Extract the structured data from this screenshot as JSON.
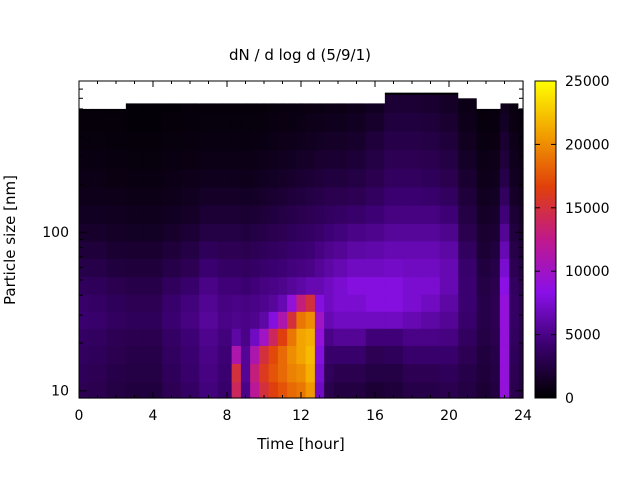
{
  "chart_data": {
    "type": "heatmap",
    "title": "dN / d log d (5/9/1)",
    "xlabel": "Time [hour]",
    "ylabel": "Particle size [nm]",
    "xlim": [
      0,
      24
    ],
    "ylim": [
      9,
      900
    ],
    "y_scale": "log",
    "x_ticks": [
      0,
      4,
      8,
      12,
      16,
      20,
      24
    ],
    "x_tick_labels": [
      "0",
      "4",
      "8",
      "12",
      "16",
      "20",
      "24"
    ],
    "y_ticks": [
      10,
      100
    ],
    "y_tick_labels": [
      "10",
      "100"
    ],
    "colorbar": {
      "min": 0,
      "max": 25000,
      "ticks": [
        0,
        5000,
        10000,
        15000,
        20000,
        25000
      ],
      "tick_labels": [
        "0",
        "5000",
        "10000",
        "15000",
        "20000",
        "25000"
      ],
      "colormap": [
        "#000000",
        "#3a006e",
        "#8a10e8",
        "#c0198c",
        "#e0400a",
        "#f2a000",
        "#ffff00"
      ]
    },
    "time_hours": [
      0,
      1,
      2,
      3,
      4,
      5,
      6,
      7,
      8,
      8.5,
      9,
      9.5,
      10,
      10.5,
      11,
      11.5,
      12,
      12.5,
      13,
      13.5,
      14,
      15,
      16,
      17,
      18,
      19,
      20,
      21,
      22,
      22.5,
      23,
      23.5,
      24
    ],
    "size_bins_nm": [
      10,
      13,
      17,
      22,
      28,
      36,
      46,
      60,
      78,
      100,
      130,
      170,
      220,
      290,
      380,
      500,
      650,
      850
    ],
    "concentration": [
      [
        3200,
        3000,
        2600,
        2400,
        2400,
        3200,
        3800,
        4600,
        4000,
        14000,
        5000,
        12000,
        15000,
        16500,
        17500,
        18500,
        19000,
        20500,
        7000,
        3000,
        2500,
        2500,
        2000,
        2200,
        2800,
        2800,
        3000,
        2600,
        2000,
        2500,
        9000,
        3000,
        2500
      ],
      [
        3400,
        3200,
        2800,
        2600,
        2600,
        3400,
        4000,
        4800,
        4200,
        15000,
        5500,
        13000,
        16000,
        17500,
        18500,
        19500,
        20000,
        21500,
        7500,
        3500,
        3000,
        3000,
        2600,
        2600,
        3200,
        3200,
        3400,
        2800,
        2200,
        2600,
        9000,
        3200,
        2600
      ],
      [
        3600,
        3400,
        3000,
        2800,
        2800,
        3600,
        4200,
        5000,
        4400,
        11000,
        5500,
        11000,
        15000,
        17000,
        18500,
        20000,
        21000,
        22000,
        8000,
        4000,
        4000,
        4000,
        3200,
        3400,
        4000,
        4000,
        4000,
        3200,
        2400,
        2800,
        9000,
        3400,
        2800
      ],
      [
        3800,
        3600,
        3200,
        3000,
        3000,
        3800,
        4400,
        5200,
        4600,
        6000,
        5000,
        7000,
        10000,
        14000,
        16500,
        19000,
        21000,
        21500,
        9000,
        5000,
        5500,
        5500,
        4500,
        4500,
        5000,
        5000,
        4800,
        3600,
        2600,
        3000,
        9000,
        3600,
        3000
      ],
      [
        4200,
        4000,
        3600,
        3400,
        3400,
        4200,
        4800,
        5600,
        5000,
        5200,
        5000,
        5200,
        6000,
        8000,
        11000,
        15000,
        19000,
        20000,
        10000,
        6500,
        7000,
        7000,
        7000,
        7000,
        6500,
        6000,
        5500,
        4000,
        2800,
        3200,
        9000,
        3800,
        3200
      ],
      [
        4000,
        3800,
        3400,
        3200,
        3200,
        4000,
        4600,
        5400,
        4800,
        5000,
        4800,
        5000,
        5200,
        5600,
        6500,
        9000,
        13000,
        15000,
        8000,
        7000,
        7500,
        7500,
        8000,
        8000,
        7500,
        7000,
        6000,
        4200,
        2800,
        3200,
        9000,
        3800,
        3200
      ],
      [
        3500,
        3400,
        3000,
        2800,
        2800,
        3500,
        4000,
        5000,
        4500,
        4500,
        4200,
        4500,
        4800,
        5000,
        5200,
        5600,
        6000,
        6500,
        6500,
        7000,
        7500,
        8000,
        8000,
        8000,
        7500,
        7500,
        6500,
        4200,
        2600,
        3000,
        8500,
        3600,
        3000
      ],
      [
        2800,
        2800,
        2400,
        2200,
        2200,
        2800,
        3200,
        4200,
        3800,
        3800,
        3600,
        3800,
        4000,
        4200,
        4400,
        4600,
        4800,
        5000,
        5500,
        6000,
        6500,
        7000,
        7000,
        7200,
        7000,
        7000,
        6500,
        4000,
        2400,
        2800,
        7500,
        3200,
        2600
      ],
      [
        2200,
        2200,
        1900,
        1800,
        1800,
        2200,
        2600,
        3400,
        3200,
        3200,
        3000,
        3200,
        3400,
        3600,
        3800,
        4000,
        4200,
        4400,
        4800,
        5200,
        5500,
        6000,
        6200,
        6500,
        6500,
        6500,
        6000,
        3600,
        2000,
        2400,
        6500,
        2800,
        2200
      ],
      [
        1700,
        1700,
        1500,
        1400,
        1400,
        1700,
        2000,
        2600,
        2600,
        2600,
        2400,
        2600,
        2800,
        3000,
        3200,
        3400,
        3600,
        3800,
        4000,
        4400,
        4600,
        5000,
        5200,
        5600,
        5600,
        5600,
        5200,
        3000,
        1800,
        2000,
        5500,
        2400,
        1800
      ],
      [
        1300,
        1300,
        1200,
        1100,
        1100,
        1300,
        1500,
        2000,
        2000,
        2000,
        1900,
        2000,
        2200,
        2400,
        2600,
        2800,
        3000,
        3200,
        3400,
        3600,
        3800,
        4000,
        4400,
        4800,
        4800,
        4800,
        4400,
        2600,
        1500,
        1700,
        4500,
        2000,
        1500
      ],
      [
        1000,
        1000,
        900,
        850,
        850,
        1000,
        1200,
        1500,
        1500,
        1500,
        1400,
        1500,
        1700,
        1800,
        2000,
        2200,
        2400,
        2600,
        2800,
        3000,
        3000,
        3200,
        3600,
        4200,
        4200,
        4000,
        3600,
        2200,
        1200,
        1400,
        3600,
        1600,
        1200
      ],
      [
        800,
        800,
        700,
        650,
        650,
        800,
        900,
        1100,
        1100,
        1100,
        1000,
        1100,
        1300,
        1400,
        1500,
        1700,
        1900,
        2000,
        2200,
        2400,
        2400,
        2600,
        3000,
        3600,
        3600,
        3400,
        3000,
        1800,
        1000,
        1100,
        2800,
        1300,
        1000
      ],
      [
        650,
        650,
        550,
        500,
        500,
        650,
        700,
        850,
        850,
        850,
        800,
        850,
        1000,
        1100,
        1200,
        1300,
        1500,
        1600,
        1800,
        1900,
        1900,
        2100,
        2600,
        3200,
        3200,
        3000,
        2600,
        1500,
        800,
        900,
        2200,
        1100,
        800
      ],
      [
        500,
        500,
        450,
        400,
        400,
        500,
        550,
        650,
        650,
        650,
        600,
        650,
        750,
        850,
        900,
        1000,
        1100,
        1200,
        1400,
        1500,
        1500,
        1700,
        2200,
        2800,
        2800,
        2600,
        2200,
        1200,
        650,
        700,
        1800,
        900,
        650
      ],
      [
        400,
        400,
        350,
        320,
        320,
        400,
        450,
        500,
        500,
        500,
        480,
        500,
        550,
        650,
        700,
        750,
        800,
        900,
        1000,
        1100,
        1100,
        1300,
        1700,
        2400,
        2400,
        2200,
        1800,
        1000,
        500,
        550,
        1400,
        700,
        500
      ],
      [
        300,
        300,
        270,
        250,
        250,
        300,
        350,
        400,
        400,
        400,
        380,
        400,
        420,
        500,
        550,
        600,
        650,
        700,
        750,
        800,
        800,
        1000,
        1300,
        2000,
        2000,
        1800,
        1500,
        800,
        400,
        450,
        1100,
        550,
        400
      ],
      [
        0,
        0,
        0,
        0,
        0,
        0,
        0,
        0,
        0,
        0,
        0,
        0,
        0,
        0,
        0,
        0,
        0,
        0,
        0,
        0,
        0,
        0,
        0,
        0,
        0,
        0,
        0,
        0,
        0,
        0,
        0,
        0,
        0
      ]
    ],
    "detection_upper_nm": [
      600,
      600,
      600,
      650,
      650,
      650,
      650,
      650,
      650,
      650,
      650,
      650,
      650,
      650,
      650,
      650,
      650,
      650,
      650,
      650,
      650,
      650,
      650,
      760,
      760,
      760,
      760,
      700,
      600,
      600,
      650,
      650,
      600
    ],
    "grid": false,
    "legend": "colorbar-right"
  }
}
